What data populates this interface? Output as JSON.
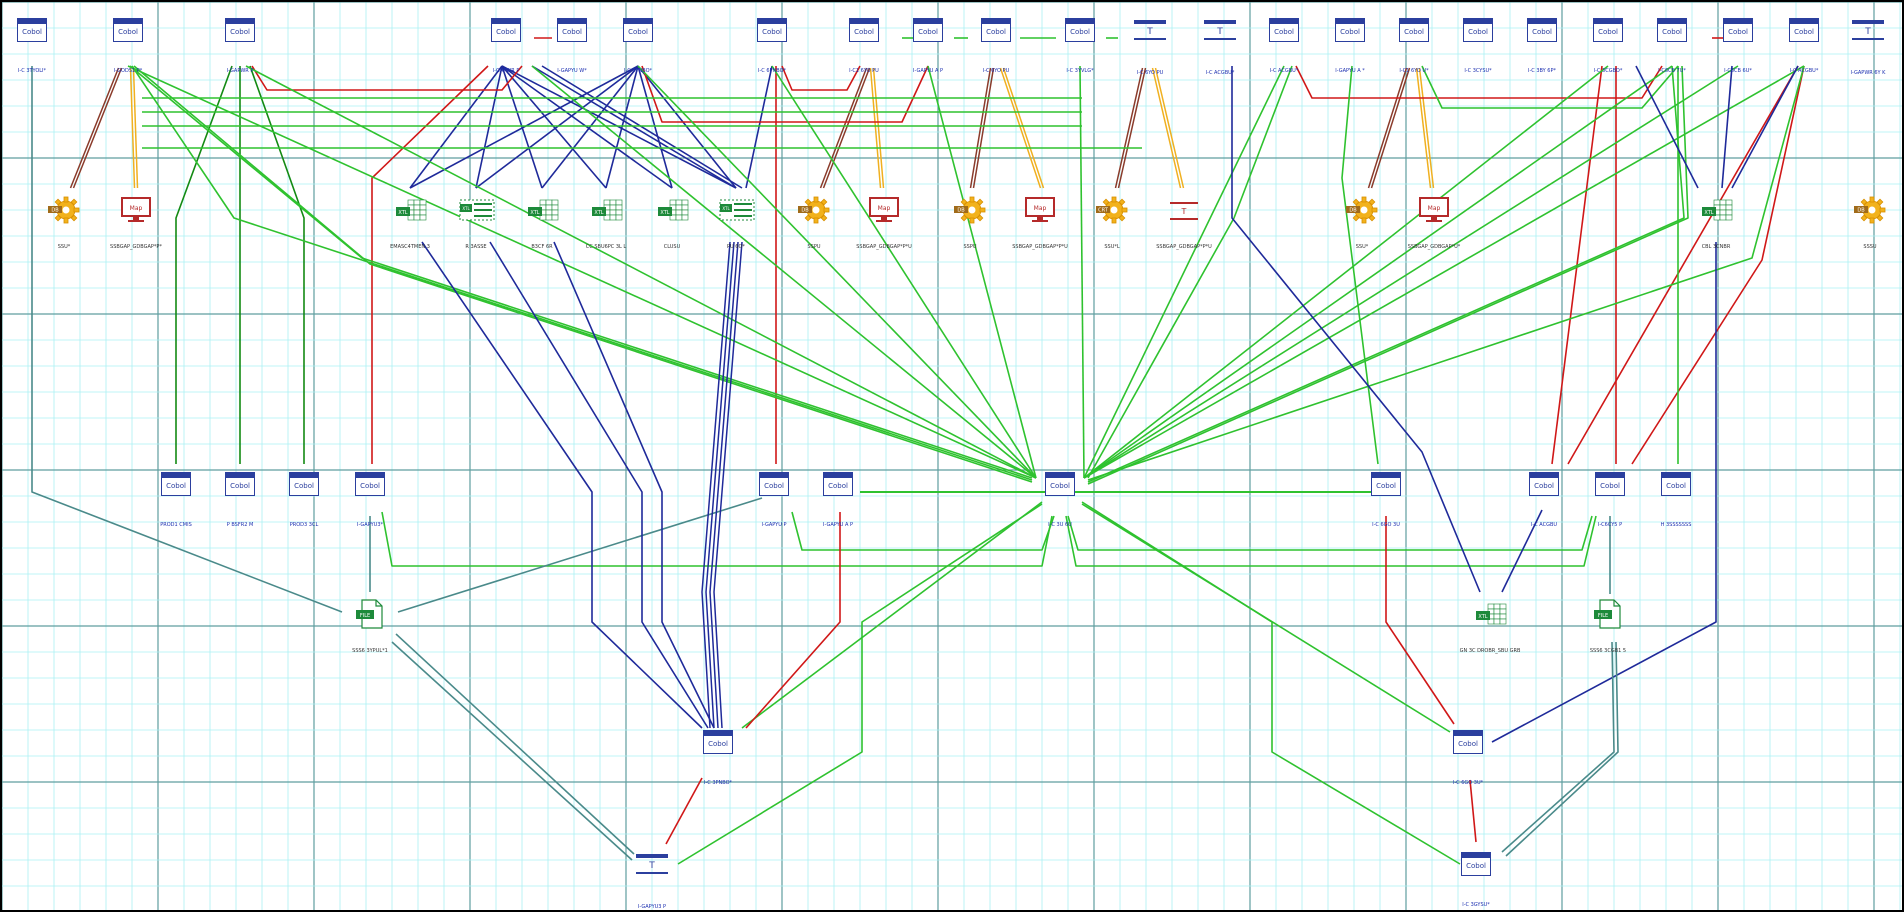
{
  "diagram": {
    "colors": {
      "grid_minor": "#aaf0f4",
      "grid_major": "#5f9e9f",
      "blue": "#1f2a9a",
      "green": "#2fc22f",
      "dark_green": "#138a13",
      "red": "#d01818",
      "orange": "#f0b020",
      "teal": "#4a8a8a",
      "brown": "#8a3b2b",
      "node_blue": "#2b3f9e"
    },
    "nodes": [
      {
        "id": "t1",
        "kind": "cobol",
        "label": "I-C 3TYOLI*",
        "icon_text": "Cobol"
      },
      {
        "id": "t2",
        "kind": "cobol",
        "label": "I-GODS1 P*",
        "icon_text": "Cobol"
      },
      {
        "id": "t3",
        "kind": "cobol",
        "label": "I-GAPWR P",
        "icon_text": "Cobol"
      },
      {
        "id": "t4",
        "kind": "cobol",
        "label": "I-GAPWR P",
        "icon_text": "Cobol"
      },
      {
        "id": "t5",
        "kind": "cobol",
        "label": "I-GAPYU W*",
        "icon_text": "Cobol"
      },
      {
        "id": "t6",
        "kind": "cobol",
        "label": "I-C 3YNBO*",
        "icon_text": "Cobol"
      },
      {
        "id": "t7",
        "kind": "cobol",
        "label": "I-C 6PNBO*",
        "icon_text": "Cobol"
      },
      {
        "id": "t8",
        "kind": "cobol",
        "label": "I-C1 6YO PU",
        "icon_text": "Cobol"
      },
      {
        "id": "t9",
        "kind": "cobol",
        "label": "I-GAPYU A P",
        "icon_text": "Cobol"
      },
      {
        "id": "t10",
        "kind": "cobol",
        "label": "I-C 6YO PU",
        "icon_text": "Cobol"
      },
      {
        "id": "t11",
        "kind": "cobol",
        "label": "I-C 3YVLG*",
        "icon_text": "Cobol"
      },
      {
        "id": "t12",
        "kind": "terminal",
        "label": "I-C 6YO PU",
        "icon_text": "T"
      },
      {
        "id": "t13",
        "kind": "terminal",
        "label": "I-C ACGBU*",
        "icon_text": "T"
      },
      {
        "id": "t14",
        "kind": "cobol",
        "label": "I-C ACGBU*",
        "icon_text": "Cobol"
      },
      {
        "id": "t15",
        "kind": "cobol",
        "label": "I-GAPYU A *",
        "icon_text": "Cobol"
      },
      {
        "id": "t16",
        "kind": "cobol",
        "label": "I-C1 6YO U*",
        "icon_text": "Cobol"
      },
      {
        "id": "t17",
        "kind": "cobol",
        "label": "I-C 3CYSU*",
        "icon_text": "Cobol"
      },
      {
        "id": "t18",
        "kind": "cobol",
        "label": "I-C 3BY 6P*",
        "icon_text": "Cobol"
      },
      {
        "id": "t19",
        "kind": "cobol",
        "label": "I-C 3CGBO*",
        "icon_text": "Cobol"
      },
      {
        "id": "t20",
        "kind": "cobol",
        "label": "I-C6CB 7U*",
        "icon_text": "Cobol"
      },
      {
        "id": "t21",
        "kind": "cobol",
        "label": "I-C6CB 6U*",
        "icon_text": "Cobol"
      },
      {
        "id": "t22",
        "kind": "cobol",
        "label": "I-C ACGBU*",
        "icon_text": "Cobol"
      },
      {
        "id": "t23",
        "kind": "terminal",
        "label": "I-GAPWR 6Y K",
        "icon_text": "T"
      },
      {
        "id": "s1",
        "kind": "gear",
        "label": "SSU*",
        "icon_text": "DB"
      },
      {
        "id": "s2",
        "kind": "monitor",
        "label": "SSBGAP_GDBGAP*P*",
        "icon_text": "Map"
      },
      {
        "id": "s3",
        "kind": "table",
        "label": "EMASC4TMEN 3",
        "icon_text": "XTL"
      },
      {
        "id": "s4",
        "kind": "cluster",
        "label": "R 3ASSE",
        "icon_text": "XTL"
      },
      {
        "id": "s5",
        "kind": "table",
        "label": "B3CF 6R",
        "icon_text": "XTL"
      },
      {
        "id": "s6",
        "kind": "table",
        "label": "CC SBU6PC 3L L",
        "icon_text": "XTL"
      },
      {
        "id": "s7",
        "kind": "table",
        "label": "CLUSU",
        "icon_text": "XTL"
      },
      {
        "id": "s8",
        "kind": "cluster",
        "label": "PU 6O*",
        "icon_text": "XTL"
      },
      {
        "id": "s9",
        "kind": "gear",
        "label": "SSPU",
        "icon_text": "DB"
      },
      {
        "id": "s10",
        "kind": "monitor",
        "label": "SSBGAP_GDBGAP*P*U",
        "icon_text": "Map"
      },
      {
        "id": "s11",
        "kind": "gear",
        "label": "SSPU",
        "icon_text": "DB"
      },
      {
        "id": "s12",
        "kind": "monitor",
        "label": "SSBGAP_GDBGAP*P*U",
        "icon_text": "Map"
      },
      {
        "id": "s13",
        "kind": "gear",
        "label": "SSU*L",
        "icon_text": "CRT"
      },
      {
        "id": "s14",
        "kind": "redbar",
        "label": "SSBGAP_GDBGAP*P*U",
        "icon_text": "T"
      },
      {
        "id": "s15",
        "kind": "gear",
        "label": "SSU*",
        "icon_text": "DB"
      },
      {
        "id": "s16",
        "kind": "monitor",
        "label": "SSBGAP_GDBGAP*U*",
        "icon_text": "Map"
      },
      {
        "id": "s17",
        "kind": "table",
        "label": "CBL 3CNBR",
        "icon_text": "XTL"
      },
      {
        "id": "s18",
        "kind": "gear",
        "label": "SSSU",
        "icon_text": "DB"
      },
      {
        "id": "m1",
        "kind": "cobol",
        "label": "PROD1 CMIS",
        "icon_text": "Cobol"
      },
      {
        "id": "m2",
        "kind": "cobol",
        "label": "P BSFR2 M",
        "icon_text": "Cobol"
      },
      {
        "id": "m3",
        "kind": "cobol",
        "label": "PROD3 3CL",
        "icon_text": "Cobol"
      },
      {
        "id": "m4",
        "kind": "cobol",
        "label": "I-GAPYU3*",
        "icon_text": "Cobol"
      },
      {
        "id": "m5",
        "kind": "cobol",
        "label": "I-GAPYU P",
        "icon_text": "Cobol"
      },
      {
        "id": "m6",
        "kind": "cobol",
        "label": "I-GAPYU A P",
        "icon_text": "Cobol"
      },
      {
        "id": "hub",
        "kind": "cobol",
        "label": "I-C 3U 6U",
        "icon_text": "Cobol"
      },
      {
        "id": "m7",
        "kind": "cobol",
        "label": "I-C 6GO 3U",
        "icon_text": "Cobol"
      },
      {
        "id": "m8",
        "kind": "cobol",
        "label": "I-C ACGBU",
        "icon_text": "Cobol"
      },
      {
        "id": "m9",
        "kind": "cobol",
        "label": "I-C6CY5 P",
        "icon_text": "Cobol"
      },
      {
        "id": "m10",
        "kind": "cobol",
        "label": "H 3SSSSSSS",
        "icon_text": "Cobol"
      },
      {
        "id": "f1",
        "kind": "file",
        "label": "SSS6 3YPUL*1",
        "icon_text": "FILE"
      },
      {
        "id": "x1",
        "kind": "table",
        "label": "GN 3C DROBR_SBU GRB",
        "icon_text": "XTL"
      },
      {
        "id": "f2",
        "kind": "file",
        "label": "SSS6 3CGB1 5",
        "icon_text": "FILE"
      },
      {
        "id": "b1",
        "kind": "cobol",
        "label": "I-C 3PNBO*",
        "icon_text": "Cobol"
      },
      {
        "id": "b2",
        "kind": "cobol",
        "label": "I-C 6GO 3U*",
        "icon_text": "Cobol"
      },
      {
        "id": "b3",
        "kind": "terminal",
        "label": "I-GAPYU3 P",
        "icon_text": "T"
      },
      {
        "id": "b4",
        "kind": "cobol",
        "label": "I-C 3GYSU*",
        "icon_text": "Cobol"
      }
    ]
  }
}
